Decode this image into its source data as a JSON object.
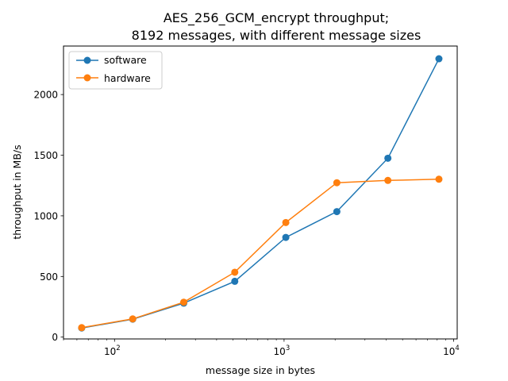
{
  "chart_data": {
    "type": "line",
    "title_lines": [
      "AES_256_GCM_encrypt throughput;",
      "8192 messages, with different message sizes"
    ],
    "xlabel": "message size in bytes",
    "ylabel": "throughput in MB/s",
    "xscale": "log",
    "x": [
      64,
      128,
      256,
      512,
      1024,
      2048,
      4096,
      8192
    ],
    "xlim": [
      50,
      10500
    ],
    "ylim": [
      -15,
      2400
    ],
    "x_ticks": [
      {
        "value": 100,
        "base": "10",
        "exp": "2"
      },
      {
        "value": 1000,
        "base": "10",
        "exp": "3"
      },
      {
        "value": 10000,
        "base": "10",
        "exp": "4"
      }
    ],
    "y_ticks": [
      {
        "value": 0,
        "label": "0"
      },
      {
        "value": 500,
        "label": "500"
      },
      {
        "value": 1000,
        "label": "1000"
      },
      {
        "value": 1500,
        "label": "1500"
      },
      {
        "value": 2000,
        "label": "2000"
      }
    ],
    "series": [
      {
        "name": "software",
        "color": "#1f77b4",
        "values": [
          75,
          148,
          280,
          460,
          822,
          1035,
          1475,
          2295
        ]
      },
      {
        "name": "hardware",
        "color": "#ff7f0e",
        "values": [
          78,
          150,
          288,
          535,
          945,
          1273,
          1292,
          1302
        ]
      }
    ],
    "legend_position": "upper-left",
    "grid": false
  }
}
